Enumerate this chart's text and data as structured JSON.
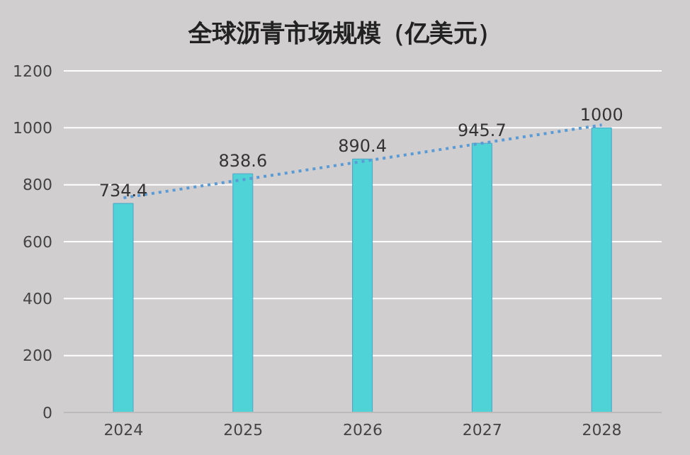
{
  "chart_data": {
    "type": "bar",
    "title": "全球沥青市场规模（亿美元）",
    "categories": [
      "2024",
      "2025",
      "2026",
      "2027",
      "2028"
    ],
    "series": [
      {
        "color": "#4fd3d6",
        "values": [
          734.4,
          838.6,
          890.4,
          945.7,
          1000
        ],
        "value_labels": [
          "734.4",
          "838.6",
          "890.4",
          "945.7",
          "1000"
        ]
      },
      {
        "type": "line",
        "color": "#5b9bd5",
        "line_style": "dotted",
        "marker": "none",
        "values": [
          754,
          818,
          882,
          946,
          1010
        ]
      }
    ],
    "ylim": [
      0,
      1200
    ],
    "yticks": [
      0,
      200,
      400,
      600,
      800,
      1000,
      1200
    ],
    "grid": "y",
    "legend": false
  }
}
